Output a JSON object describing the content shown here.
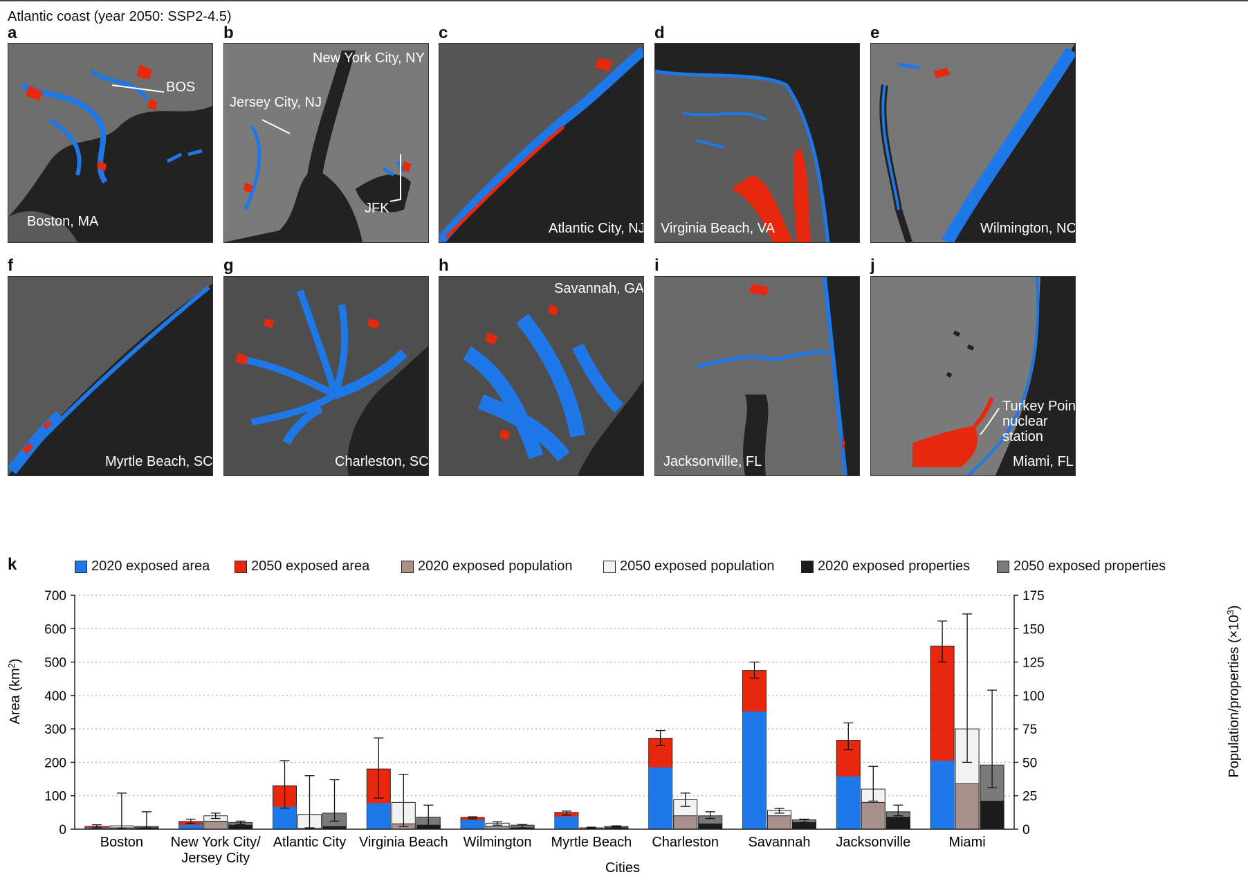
{
  "figure_title": "Atlantic coast (year 2050: SSP2-4.5)",
  "panels": [
    {
      "letter": "a",
      "labels": [
        {
          "text": "Boston, MA"
        },
        {
          "text": "BOS"
        }
      ]
    },
    {
      "letter": "b",
      "labels": [
        {
          "text": "New York City, NY"
        },
        {
          "text": "Jersey City, NJ"
        },
        {
          "text": "JFK"
        }
      ]
    },
    {
      "letter": "c",
      "labels": [
        {
          "text": "Atlantic City, NJ"
        }
      ]
    },
    {
      "letter": "d",
      "labels": [
        {
          "text": "Virginia Beach, VA"
        }
      ]
    },
    {
      "letter": "e",
      "labels": [
        {
          "text": "Wilmington, NC"
        }
      ]
    },
    {
      "letter": "f",
      "labels": [
        {
          "text": "Myrtle Beach, SC"
        }
      ]
    },
    {
      "letter": "g",
      "labels": [
        {
          "text": "Charleston, SC"
        }
      ]
    },
    {
      "letter": "h",
      "labels": [
        {
          "text": "Savannah, GA"
        }
      ]
    },
    {
      "letter": "i",
      "labels": [
        {
          "text": "Jacksonville, FL"
        }
      ]
    },
    {
      "letter": "j",
      "labels": [
        {
          "text": "Miami, FL"
        },
        {
          "text": "Turkey Point"
        },
        {
          "text": "nuclear"
        },
        {
          "text": "station"
        }
      ]
    }
  ],
  "colors": {
    "area_2020": "#1f78e8",
    "area_2050": "#e8280c",
    "pop_2020": "#a8918a",
    "pop_2050": "#f2f2f2",
    "prop_2020": "#1c1c1c",
    "prop_2050": "#7a7a7a",
    "map_bg": "#222222",
    "map_land": "#6e6e6e"
  },
  "chart_data": {
    "panel_letter": "k",
    "type": "bar",
    "xlabel": "Cities",
    "ylabel_left_main": "Area (km",
    "ylabel_left_sup": "2",
    "ylabel_left_end": ")",
    "ylabel_right_main": "Population/properties (×10",
    "ylabel_right_sup": "3",
    "ylabel_right_end": ")",
    "ylim_left": [
      0,
      700
    ],
    "ylim_right": [
      0,
      175
    ],
    "yticks_left": [
      "0",
      "100",
      "200",
      "300",
      "400",
      "500",
      "600",
      "700"
    ],
    "yticks_right": [
      "0",
      "25",
      "50",
      "75",
      "100",
      "125",
      "150",
      "175"
    ],
    "grid": "dotted horizontal",
    "legend": [
      "2020 exposed area",
      "2050 exposed area",
      "2020 exposed population",
      "2050 exposed population",
      "2020 exposed properties",
      "2050 exposed properties"
    ],
    "categories": [
      {
        "line1": "Boston",
        "line2": ""
      },
      {
        "line1": "New York City/",
        "line2": "Jersey City"
      },
      {
        "line1": "Atlantic City",
        "line2": ""
      },
      {
        "line1": "Virginia Beach",
        "line2": ""
      },
      {
        "line1": "Wilmington",
        "line2": ""
      },
      {
        "line1": "Myrtle Beach",
        "line2": ""
      },
      {
        "line1": "Charleston",
        "line2": ""
      },
      {
        "line1": "Savannah",
        "line2": ""
      },
      {
        "line1": "Jacksonville",
        "line2": ""
      },
      {
        "line1": "Miami",
        "line2": ""
      }
    ],
    "area": {
      "axis": "left",
      "area_2020": [
        4,
        13,
        67,
        78,
        27,
        38,
        185,
        352,
        158,
        205
      ],
      "area_2050": [
        8,
        23,
        130,
        180,
        35,
        50,
        272,
        475,
        266,
        548
      ],
      "err_low": [
        4,
        17,
        63,
        93,
        31,
        42,
        250,
        452,
        238,
        500
      ],
      "err_high": [
        13,
        30,
        205,
        273,
        37,
        54,
        295,
        500,
        318,
        623
      ]
    },
    "population": {
      "axis": "right",
      "pop_2020": [
        1,
        6,
        0.5,
        4,
        2,
        0.3,
        10,
        10,
        20,
        34
      ],
      "pop_2050": [
        2.5,
        10,
        11,
        20,
        4.5,
        1,
        22,
        14,
        30,
        75
      ],
      "err_low": [
        0.5,
        8,
        1,
        2,
        3,
        0.5,
        17,
        12,
        21,
        50
      ],
      "err_high": [
        27,
        12,
        40,
        41,
        5.5,
        1.5,
        27,
        15.5,
        47,
        161
      ]
    },
    "properties": {
      "axis": "right",
      "prop_2020": [
        1,
        3,
        2,
        3,
        1,
        1,
        4,
        5,
        9,
        21
      ],
      "prop_2050": [
        2,
        5,
        12,
        9,
        3,
        2,
        10,
        7,
        13,
        48
      ],
      "err_low": [
        1,
        3.5,
        6,
        2,
        1,
        1.5,
        8,
        5,
        10,
        31
      ],
      "err_high": [
        13,
        6,
        37,
        18,
        3.5,
        2.5,
        13,
        7.5,
        18,
        104
      ]
    }
  }
}
